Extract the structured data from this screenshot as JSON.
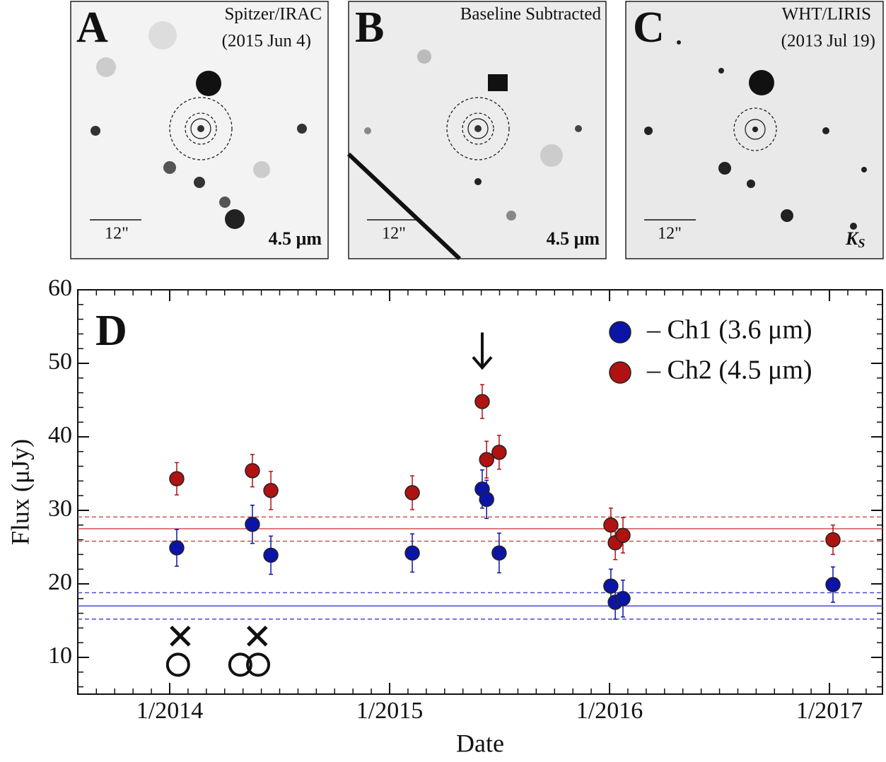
{
  "panels": [
    {
      "letter": "A",
      "title": [
        "Spitzer/IRAC",
        "(2015 Jun 4)"
      ],
      "scale": "12\"",
      "band": "4.5 μm"
    },
    {
      "letter": "B",
      "title": [
        "Baseline Subtracted"
      ],
      "scale": "12\"",
      "band": "4.5 μm"
    },
    {
      "letter": "C",
      "title": [
        "WHT/LIRIS",
        "(2013 Jul 19)"
      ],
      "scale": "12\"",
      "band": {
        "main": "K",
        "sub": "S"
      }
    }
  ],
  "chart_data": {
    "type": "scatter",
    "panel_label": "D",
    "xlabel": "Date",
    "ylabel": "Flux (μJy)",
    "xlim": [
      2013.582,
      2017.241
    ],
    "ylim": [
      5,
      60
    ],
    "xticks": [
      {
        "value": 2014,
        "label": "1/2014"
      },
      {
        "value": 2015,
        "label": "1/2015"
      },
      {
        "value": 2016,
        "label": "1/2016"
      },
      {
        "value": 2017,
        "label": "1/2017"
      }
    ],
    "yticks": [
      10,
      20,
      30,
      40,
      50,
      60
    ],
    "minor_ticks": {
      "x_per_major": 12,
      "y_step": 2
    },
    "legend": "upper right",
    "series": [
      {
        "name": "– Ch1 (3.6 μm)",
        "color": "#0c14a8",
        "line_color": "#4a4ad2",
        "x": [
          2014.032,
          2014.376,
          2014.46,
          2015.103,
          2015.421,
          2015.441,
          2015.498,
          2016.006,
          2016.026,
          2016.061,
          2017.016
        ],
        "values": [
          24.9,
          28.1,
          23.9,
          24.2,
          32.9,
          31.5,
          24.2,
          19.7,
          17.5,
          18.0,
          19.9
        ],
        "errors": [
          2.5,
          2.6,
          2.6,
          2.6,
          2.6,
          2.6,
          2.7,
          2.3,
          2.3,
          2.5,
          2.4
        ],
        "mean": 17.0,
        "band": [
          15.2,
          18.8
        ]
      },
      {
        "name": "– Ch2 (4.5 μm)",
        "color": "#b01212",
        "line_color": "#d25050",
        "x": [
          2014.032,
          2014.376,
          2014.46,
          2015.103,
          2015.421,
          2015.441,
          2015.498,
          2016.006,
          2016.026,
          2016.061,
          2017.016
        ],
        "values": [
          34.3,
          35.4,
          32.7,
          32.4,
          44.8,
          36.9,
          37.9,
          28.0,
          25.6,
          26.6,
          26.0
        ],
        "errors": [
          2.2,
          2.2,
          2.6,
          2.3,
          2.3,
          2.5,
          2.3,
          2.3,
          2.3,
          2.4,
          2.0
        ],
        "mean": 27.5,
        "band": [
          25.8,
          29.1
        ]
      }
    ],
    "markers": [
      {
        "symbol": "x",
        "x": 2014.048,
        "y": 12.9
      },
      {
        "symbol": "x",
        "x": 2014.398,
        "y": 12.9
      },
      {
        "symbol": "o",
        "x": 2014.038,
        "y": 9.0
      },
      {
        "symbol": "o",
        "x": 2014.321,
        "y": 9.0
      },
      {
        "symbol": "o",
        "x": 2014.402,
        "y": 9.0
      }
    ],
    "arrow": {
      "x": 2015.421,
      "y_from": 54.2,
      "y_to": 49.4
    }
  }
}
